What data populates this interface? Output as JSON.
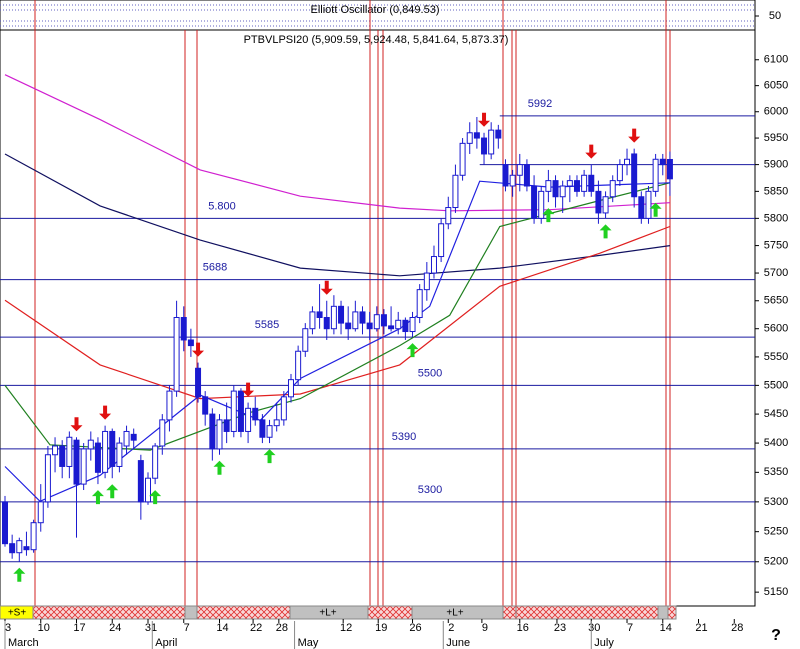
{
  "chart_data": {
    "type": "candlestick",
    "title": "PTBVLPSI20 (5,909.59, 5,924.48, 5,841.64, 5,873.37)",
    "oscillator_title": "Elliott Oscillator (0,849.53)",
    "oscillator_tick": 50,
    "help": "?",
    "log_scale": true,
    "ylim": [
      5129,
      6158
    ],
    "yticks": [
      5150,
      5200,
      5250,
      5300,
      5350,
      5400,
      5450,
      5500,
      5550,
      5600,
      5650,
      5700,
      5750,
      5800,
      5850,
      5900,
      5950,
      6000,
      6050,
      6100
    ],
    "xlim": [
      -0.7,
      104.9
    ],
    "xticks": [
      {
        "value": 0,
        "label": "3"
      },
      {
        "value": 5,
        "label": "10"
      },
      {
        "value": 10,
        "label": "17"
      },
      {
        "value": 15,
        "label": "24"
      },
      {
        "value": 20,
        "label": "31"
      },
      {
        "value": 25,
        "label": "7"
      },
      {
        "value": 30,
        "label": "14"
      },
      {
        "value": 34.7,
        "label": "22"
      },
      {
        "value": 38.3,
        "label": "28"
      },
      {
        "value": 47.3,
        "label": "12"
      },
      {
        "value": 52.2,
        "label": "19"
      },
      {
        "value": 57,
        "label": "26"
      },
      {
        "value": 62,
        "label": "2"
      },
      {
        "value": 66.7,
        "label": "9"
      },
      {
        "value": 72,
        "label": "16"
      },
      {
        "value": 77.2,
        "label": "23"
      },
      {
        "value": 82,
        "label": "30"
      },
      {
        "value": 87,
        "label": "7"
      },
      {
        "value": 92,
        "label": "14"
      },
      {
        "value": 97,
        "label": "21"
      },
      {
        "value": 102,
        "label": "28"
      }
    ],
    "months": [
      {
        "value": 0,
        "label": "March"
      },
      {
        "value": 20.6,
        "label": "April"
      },
      {
        "value": 40.5,
        "label": "May"
      },
      {
        "value": 61.3,
        "label": "June"
      },
      {
        "value": 82,
        "label": "July"
      }
    ],
    "up_color": "#ffffff",
    "down_color": "#1a1ad0",
    "candle_edge": "#1a1ad0",
    "candles": [
      [
        5300,
        5310,
        5225,
        5230
      ],
      [
        5230,
        5245,
        5205,
        5215
      ],
      [
        5215,
        5240,
        5200,
        5235
      ],
      [
        5225,
        5250,
        5210,
        5220
      ],
      [
        5220,
        5270,
        5215,
        5265
      ],
      [
        5265,
        5330,
        5250,
        5300
      ],
      [
        5300,
        5395,
        5290,
        5380
      ],
      [
        5380,
        5410,
        5350,
        5395
      ],
      [
        5395,
        5405,
        5340,
        5360
      ],
      [
        5360,
        5420,
        5340,
        5410
      ],
      [
        5405,
        5410,
        5240,
        5330
      ],
      [
        5330,
        5400,
        5320,
        5390
      ],
      [
        5390,
        5420,
        5370,
        5405
      ],
      [
        5400,
        5410,
        5330,
        5350
      ],
      [
        5350,
        5430,
        5340,
        5420
      ],
      [
        5420,
        5425,
        5340,
        5360
      ],
      [
        5360,
        5410,
        5350,
        5400
      ],
      [
        5395,
        5430,
        5380,
        5420
      ],
      [
        5415,
        5425,
        5390,
        5405
      ],
      [
        5370,
        5380,
        5270,
        5300
      ],
      [
        5300,
        5350,
        5295,
        5340
      ],
      [
        5340,
        5400,
        5330,
        5395
      ],
      [
        5395,
        5450,
        5380,
        5440
      ],
      [
        5440,
        5500,
        5420,
        5490
      ],
      [
        5490,
        5650,
        5480,
        5620
      ],
      [
        5620,
        5640,
        5560,
        5580
      ],
      [
        5580,
        5600,
        5550,
        5570
      ],
      [
        5530,
        5540,
        5470,
        5480
      ],
      [
        5480,
        5490,
        5430,
        5450
      ],
      [
        5450,
        5460,
        5370,
        5390
      ],
      [
        5390,
        5450,
        5380,
        5440
      ],
      [
        5440,
        5470,
        5400,
        5420
      ],
      [
        5420,
        5500,
        5410,
        5490
      ],
      [
        5490,
        5495,
        5410,
        5420
      ],
      [
        5420,
        5470,
        5400,
        5460
      ],
      [
        5460,
        5480,
        5430,
        5440
      ],
      [
        5440,
        5450,
        5400,
        5410
      ],
      [
        5410,
        5440,
        5400,
        5430
      ],
      [
        5430,
        5470,
        5420,
        5440
      ],
      [
        5440,
        5490,
        5430,
        5480
      ],
      [
        5480,
        5520,
        5470,
        5510
      ],
      [
        5510,
        5570,
        5500,
        5560
      ],
      [
        5560,
        5610,
        5550,
        5600
      ],
      [
        5600,
        5640,
        5590,
        5630
      ],
      [
        5630,
        5680,
        5600,
        5620
      ],
      [
        5620,
        5650,
        5580,
        5600
      ],
      [
        5600,
        5660,
        5590,
        5640
      ],
      [
        5640,
        5650,
        5590,
        5610
      ],
      [
        5610,
        5640,
        5580,
        5600
      ],
      [
        5600,
        5650,
        5595,
        5630
      ],
      [
        5630,
        5640,
        5590,
        5610
      ],
      [
        5610,
        5630,
        5580,
        5600
      ],
      [
        5600,
        5640,
        5595,
        5625
      ],
      [
        5625,
        5635,
        5590,
        5605
      ],
      [
        5605,
        5640,
        5595,
        5600
      ],
      [
        5600,
        5630,
        5590,
        5615
      ],
      [
        5615,
        5620,
        5580,
        5595
      ],
      [
        5595,
        5630,
        5585,
        5620
      ],
      [
        5620,
        5680,
        5610,
        5670
      ],
      [
        5670,
        5720,
        5650,
        5700
      ],
      [
        5700,
        5750,
        5690,
        5730
      ],
      [
        5730,
        5800,
        5720,
        5790
      ],
      [
        5790,
        5840,
        5780,
        5820
      ],
      [
        5820,
        5900,
        5810,
        5880
      ],
      [
        5880,
        5950,
        5870,
        5940
      ],
      [
        5940,
        5980,
        5920,
        5960
      ],
      [
        5960,
        5990,
        5930,
        5950
      ],
      [
        5950,
        5960,
        5900,
        5920
      ],
      [
        5920,
        5980,
        5910,
        5965
      ],
      [
        5965,
        5975,
        5930,
        5950
      ],
      [
        5900,
        5910,
        5850,
        5860
      ],
      [
        5860,
        5890,
        5840,
        5880
      ],
      [
        5880,
        5920,
        5850,
        5900
      ],
      [
        5900,
        5910,
        5850,
        5860
      ],
      [
        5860,
        5880,
        5790,
        5800
      ],
      [
        5800,
        5860,
        5790,
        5850
      ],
      [
        5850,
        5890,
        5830,
        5870
      ],
      [
        5870,
        5880,
        5820,
        5840
      ],
      [
        5840,
        5870,
        5810,
        5860
      ],
      [
        5860,
        5880,
        5830,
        5870
      ],
      [
        5870,
        5880,
        5840,
        5850
      ],
      [
        5850,
        5890,
        5840,
        5880
      ],
      [
        5880,
        5900,
        5840,
        5850
      ],
      [
        5850,
        5870,
        5790,
        5810
      ],
      [
        5810,
        5850,
        5800,
        5840
      ],
      [
        5840,
        5880,
        5830,
        5870
      ],
      [
        5870,
        5910,
        5860,
        5900
      ],
      [
        5900,
        5930,
        5880,
        5910
      ],
      [
        5920,
        5930,
        5820,
        5840
      ],
      [
        5840,
        5850,
        5790,
        5800
      ],
      [
        5800,
        5860,
        5790,
        5850
      ],
      [
        5850,
        5920,
        5840,
        5910
      ],
      [
        5910,
        5920,
        5880,
        5900
      ],
      [
        5909.59,
        5924.48,
        5841.64,
        5873.37
      ]
    ],
    "lines": [
      {
        "color": "#d020d0",
        "x": [
          0,
          13.3,
          27.3,
          41.3,
          55.2,
          62.2,
          76.2,
          93
        ],
        "values": [
          6071,
          5985,
          5890,
          5841,
          5819,
          5814,
          5816,
          5829
        ]
      },
      {
        "color": "#101060",
        "x": [
          0,
          13.3,
          27.3,
          41.3,
          55.2,
          69.2,
          83.2,
          93
        ],
        "values": [
          5920,
          5823,
          5760,
          5709,
          5695,
          5709,
          5732,
          5750
        ]
      },
      {
        "color": "#e02020",
        "x": [
          0,
          13.3,
          27.3,
          41.3,
          55.2,
          69.2,
          83.2,
          93
        ],
        "values": [
          5651,
          5536,
          5477,
          5485,
          5536,
          5676,
          5736,
          5785
        ]
      },
      {
        "color": "#208020",
        "x": [
          0,
          6.3,
          20.3,
          34.3,
          41.3,
          55.2,
          62.2,
          69.2,
          83.2,
          93
        ],
        "values": [
          5500,
          5397,
          5388,
          5453,
          5477,
          5570,
          5624,
          5785,
          5833,
          5866
        ]
      },
      {
        "color": "#2020e0",
        "x": [
          0,
          4.9,
          13.3,
          27.3,
          35.7,
          41.3,
          55.2,
          59.4,
          66.4,
          76.2,
          93
        ],
        "values": [
          5360,
          5301,
          5345,
          5483,
          5439,
          5512,
          5600,
          5640,
          5869,
          5858,
          5866
        ]
      }
    ],
    "levels": [
      5992,
      5900,
      5800,
      5688,
      5585,
      5500,
      5390,
      5300,
      5200
    ],
    "level_labels": [
      "5992",
      null,
      "5.800",
      "5688",
      "5585",
      "5500",
      "5390",
      "5300",
      null
    ],
    "signals": {
      "down": [
        10,
        14,
        27,
        34,
        45,
        67,
        82,
        88
      ],
      "up": [
        2,
        13,
        15,
        21,
        30,
        37,
        57,
        76,
        84,
        91
      ]
    },
    "strip_labels": [
      "+S+",
      "+L+",
      "+L+"
    ]
  }
}
